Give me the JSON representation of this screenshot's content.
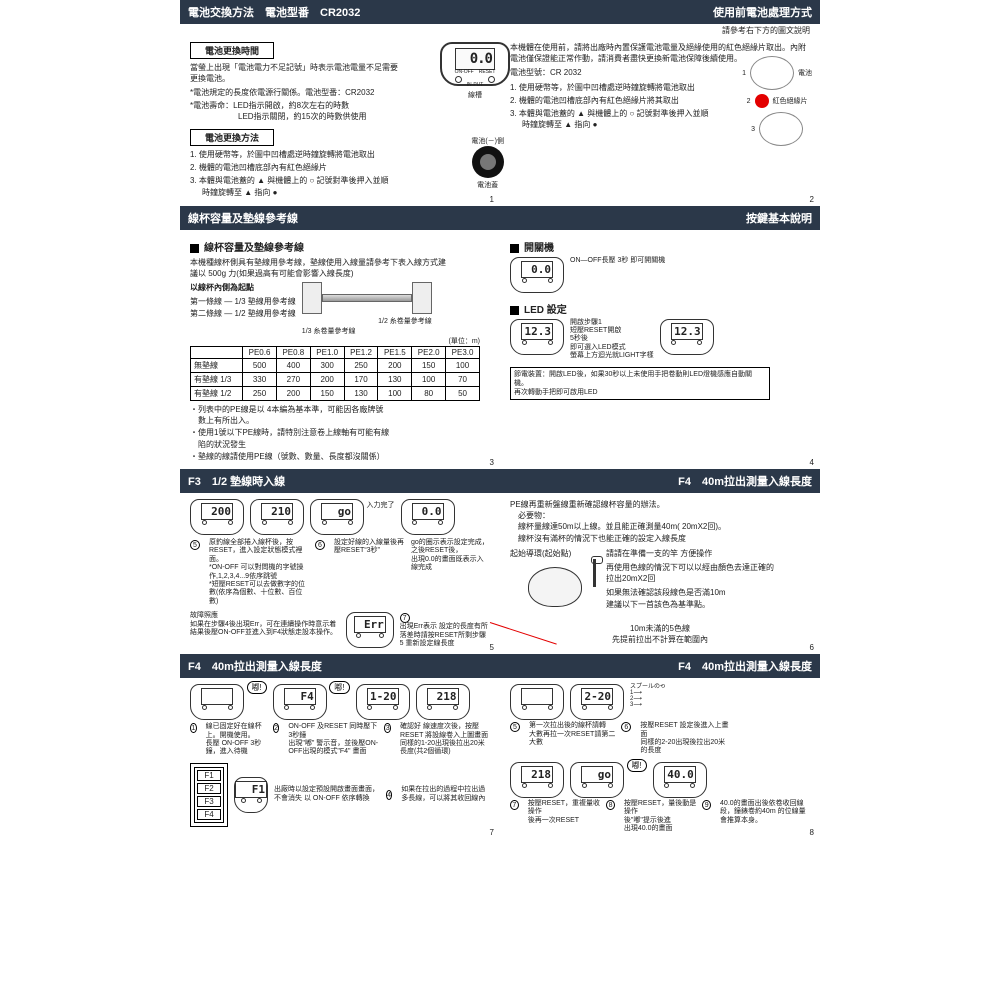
{
  "topnote": "請參考右下方的圖文說明",
  "sec1": {
    "left_title": "電池交換方法　電池型番　CR2032",
    "right_title": "使用前電池處理方式",
    "box1": "電池更換時間",
    "p1": "當螢上出現「電池電力不足記號」時表示電池電量不足需要更換電池。",
    "bul1": "*電池規定的長度依電源行關係。電池型番：CR2032",
    "bul2": "*電池壽命：LED指示開啟，約8次左右的時數\n　　　　　LED指示關閉，約15次的時數供使用",
    "box2": "電池更換方法",
    "li1": "1. 使用硬幣等，於圖中凹槽處逆時鐘旋轉將電池取出",
    "li2": "2. 機體的電池凹槽底部內有紅色絕緣片",
    "li3": "3. 本體與電池蓋的 ▲ 與機體上的 ○ 記號對準後押入並順時鐘旋轉至 ▲ 指向 ●",
    "r_p1": "本機體在使用前，請將出廠時內置保護電池電量及絕緣使用的紅色絕緣片取出。內附電池僅保證能正常作動，請消費者盡快更換新電池保障後續使用。",
    "r_p2": "電池型號：CR 2032",
    "r_li1": "1. 使用硬幣等，於圖中凹槽處逆時鐘旋轉將電池取出",
    "r_li2": "2. 機體的電池凹槽底部內有紅色絕緣片將其取出",
    "r_li3": "3. 本體與電池蓋的 ▲ 與機體上的 ○ 記號對準後押入並順時鐘旋轉至 ▲ 指向 ●",
    "d_display": "0.0",
    "d_onoff": "ON-OFF",
    "d_reset": "RESET",
    "d_input": "IN-PUT",
    "lbl_spool": "線槽",
    "lbl_bat": "電池(－)側",
    "lbl_cap": "電池蓋",
    "lbl_cap2": "電池",
    "lbl_red": "紅色絕緣片",
    "lbl_reel_r": "線軸"
  },
  "sec2": {
    "left_title": "線杯容量及墊線參考線",
    "right_title": "按鍵基本說明",
    "sub1": "線杯容量及墊線參考線",
    "p1": "本機種線杯側具有墊線用參考線，墊線使用入線量請參考下表入線方式建議以 500g 力(如果過高有可能會影響入線長度)",
    "ref1": "1/2 糸卷量參考線",
    "ref2": "1/3 糸卷量參考線",
    "pivot": "以線杯內側為起點",
    "l1": "第一條線 — 1/3 墊線用參考線",
    "l2": "第二條線 — 1/2 墊線用參考線",
    "unit": "(單位：m)",
    "th": [
      "",
      "PE0.6",
      "PE0.8",
      "PE1.0",
      "PE1.2",
      "PE1.5",
      "PE2.0",
      "PE3.0"
    ],
    "rows": [
      [
        "無墊線",
        "500",
        "400",
        "300",
        "250",
        "200",
        "150",
        "100"
      ],
      [
        "有墊線 1/3",
        "330",
        "270",
        "200",
        "170",
        "130",
        "100",
        "70"
      ],
      [
        "有墊線 1/2",
        "250",
        "200",
        "150",
        "130",
        "100",
        "80",
        "50"
      ]
    ],
    "foot1": "・列表中的PE線是以 4本編為基本準，可能因各廠牌號數上有所出入。",
    "foot2": "・使用1號以下PE線時，請特別注意卷上線軸有可能有線陷的狀況發生",
    "foot3": "・墊線的線請使用PE線（號數、數量、長度都沒關係）",
    "r_sub1": "開關機",
    "r_onoff": "ON—OFF長壓 3秒 即可開關機",
    "r_sub2": "LED 設定",
    "r_led1": "開啟步驟1\n短壓RESET開啟\n5秒後\n即可選入LED模式\n螢幕上方迴光就LIGHT字樣",
    "r_led_box": "節電裝置：開啟LED後，如果30秒以上未使用手把卷動則LED燈機感應自動關機。\n再次轉動手把即可啟用LED",
    "d0": "0.0",
    "d123a": "12.3",
    "d123b": "12.3"
  },
  "sec3": {
    "left_title": "F3　1/2 墊線時入線",
    "right_title": "F4　40m拉出測量入線長度",
    "s1": "原釣線全部捲入線杯後，按RESET，進入設定狀態模式裡面。\n*ON-OFF 可以對問機的字號操作,1,2,3,4...9依序跳號\n*短壓RESET可以去做數字的位數(依序為個數、十位數、百位數)",
    "s2": "設定好線的入線量後再壓RESET“3秒”",
    "s3": "go的圈示表示設定完成，之後RESET後，\n出現0.0的畫面既表示入線完成",
    "err": "故障照應\n如果在步驟4後出現Err，可在連續操作時意示着結果後壓ON-OFF並進入到F4狀態走設本操作。",
    "s7": "出現Err表示 設定的長度有所落差時請按RESET所剩步驟 5 重新設定線長度",
    "d200": "200",
    "d210": "210",
    "dgo": "go",
    "d00": "0.0",
    "derr": "Err",
    "r_p1": "PE線再重新盤線重新確認線杯容量的辦法。\n　必要物：\n　線杯量線達50m以上線。並且能正確測量40m( 20mX2回)。\n　線杯沒有滿杯的情況下也能正確的設定入線長度",
    "r_lab": "起始導環(起始點)",
    "r_s1": "請請在準備一支的竿 方便操作",
    "r_s2": "再使用色線的情況下可以以經由顏色去達正確的拉出20mX2回",
    "r_s3": "如果無法確認該段線色是否滿10m\n建議以下一首該色為基準點。",
    "r_cap": "10m未滿的5色線\n先提前拉出不計算在範圍內"
  },
  "sec4": {
    "left_title": "F4　40m拉出測量入線長度",
    "right_title": "F4　40m拉出測量入線長度",
    "s1": "線已固定好在線杯上。開機使用。\n長壓 ON-OFF 3秒鐘，進入待機",
    "s2": "ON-OFF 及RESET 同時壓下 3秒鐘\n出現\"嘟\" 警示音，並後壓ON-OFF出現的模式\"F4\" 畫面",
    "s3": "確認好 線速度次後，按壓RESET 將設線卷入上圖畫面\n同樣的1-20出現後拉出20米長度(共2個循環)",
    "s4": "如果在拉出的過程中拉出過多長線，可以將其收回線內",
    "ft": [
      "F1",
      "F2",
      "F3",
      "F4"
    ],
    "ftcap": "出廠時以設定預設開啟畫面畫面，不會消失 以 ON-OFF 依序轉換",
    "d1": "",
    "dF4bub": "嘟!",
    "dF1": "F1",
    "d120": "1-20",
    "d218": "218",
    "r_s5": "第一次拉出後的線杯請轉\n大數再拉一次RESET請第二\n大數",
    "r_s6": "按壓RESET 設定後進入上畫面\n同樣的2-20出現後拉出20米的長度",
    "r_s7": "按壓RESET，重複量收操作\n後再一次RESET",
    "r_s8": "按壓RESET，量後動是操作\n後\"嘟\"提示後進\n出現40.0的畫面",
    "r_s9": "40.0的畫面出後依卷收回線段，鐘錶卷約40m 的位線量會推算本身。",
    "d220": "2-20",
    "dgo": "go",
    "d400": "40.0",
    "dbub": "嘟!"
  },
  "colors": {
    "header": "#2b3849",
    "red": "#e30000"
  }
}
